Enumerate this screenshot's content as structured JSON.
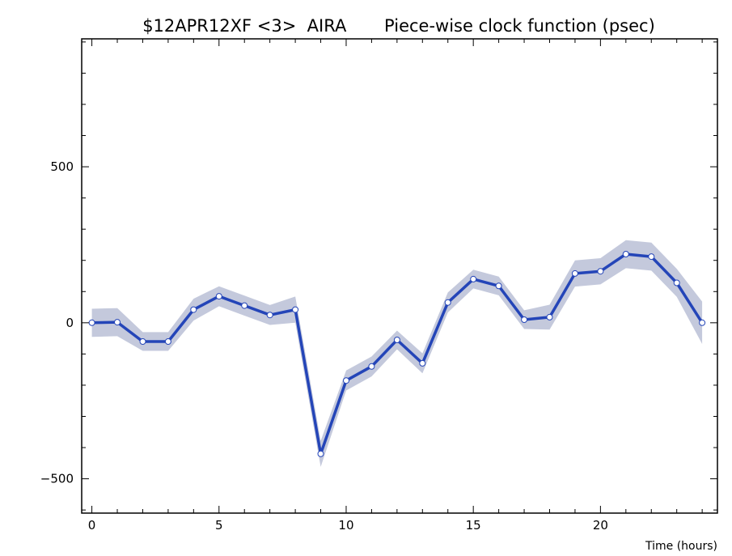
{
  "chart_data": {
    "type": "line",
    "title": "$12APR12XF <3>  AIRA       Piece-wise clock function (psec)",
    "xlabel": "Time (hours)",
    "ylabel": "",
    "xlim": [
      -0.4,
      24.6
    ],
    "ylim": [
      -610,
      910
    ],
    "x_ticks": [
      0,
      5,
      10,
      15,
      20
    ],
    "y_ticks": [
      -500,
      0,
      500
    ],
    "grid": false,
    "legend": "none",
    "colors": {
      "line": "#2445b8",
      "band": "#c4c9dc",
      "marker_fill": "#ffffff",
      "marker_stroke": "#2445b8",
      "axis": "#000000"
    },
    "series": [
      {
        "x": [
          0,
          1,
          2,
          3,
          4,
          5,
          6,
          7,
          8,
          9,
          10,
          11,
          12,
          13,
          14,
          15,
          16,
          17,
          18,
          19,
          20,
          21,
          22,
          23,
          24
        ],
        "values": [
          0,
          2,
          -60,
          -60,
          42,
          85,
          55,
          25,
          42,
          -420,
          -185,
          -140,
          -55,
          -130,
          65,
          140,
          118,
          10,
          18,
          158,
          165,
          220,
          212,
          128,
          0
        ],
        "error": [
          45,
          45,
          30,
          30,
          35,
          32,
          32,
          32,
          42,
          42,
          32,
          32,
          30,
          32,
          32,
          30,
          30,
          30,
          40,
          42,
          42,
          45,
          45,
          45,
          68
        ]
      }
    ]
  }
}
